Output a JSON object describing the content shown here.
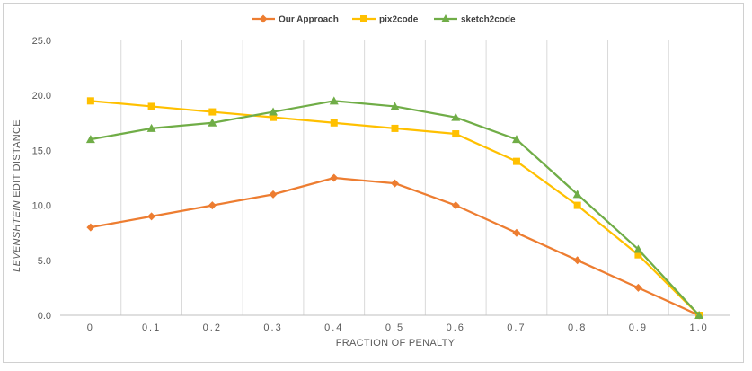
{
  "chart_data": {
    "type": "line",
    "title": "",
    "xlabel": "FRACTION OF PENALTY",
    "ylabel_italic": "LEVENSHTEIN",
    "ylabel_rest": " EDIT DISTANCE",
    "x_tick_labels": [
      "0",
      "0.1",
      "0.2",
      "0.3",
      "0.4",
      "0.5",
      "0.6",
      "0.7",
      "0.8",
      "0.9",
      "1.0"
    ],
    "y_tick_labels": [
      "0.0",
      "5.0",
      "10.0",
      "15.0",
      "20.0",
      "25.0"
    ],
    "ylim": [
      0,
      25
    ],
    "grid": "vertical",
    "legend_position": "top-center",
    "series": [
      {
        "name": "Our Approach",
        "color": "#ED7D31",
        "marker": "diamond",
        "values": [
          8.0,
          9.0,
          10.0,
          11.0,
          12.5,
          12.0,
          10.0,
          7.5,
          5.0,
          2.5,
          0.0
        ]
      },
      {
        "name": "pix2code",
        "color": "#FFC000",
        "marker": "square",
        "values": [
          19.5,
          19.0,
          18.5,
          18.0,
          17.5,
          17.0,
          16.5,
          14.0,
          10.0,
          5.5,
          0.0
        ]
      },
      {
        "name": "sketch2code",
        "color": "#70AD47",
        "marker": "triangle",
        "values": [
          16.0,
          17.0,
          17.5,
          18.5,
          19.5,
          19.0,
          18.0,
          16.0,
          11.0,
          6.0,
          0.0
        ]
      }
    ]
  }
}
